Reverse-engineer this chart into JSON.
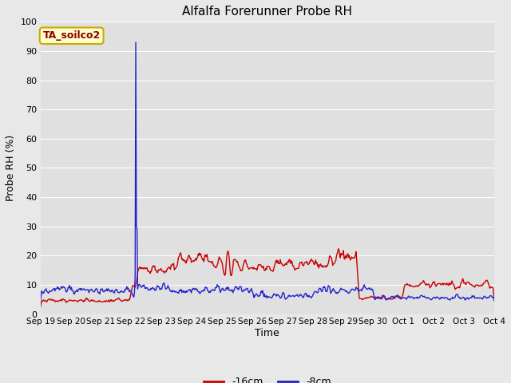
{
  "title": "Alfalfa Forerunner Probe RH",
  "ylabel": "Probe RH (%)",
  "xlabel": "Time",
  "ylim": [
    0,
    100
  ],
  "bg_color": "#e8e8e8",
  "plot_bg_color": "#e0e0e0",
  "grid_color": "#ffffff",
  "annotation_text": "TA_soilco2",
  "annotation_bg": "#ffffcc",
  "annotation_border": "#ccaa00",
  "line1_color": "#cc0000",
  "line2_color": "#2222cc",
  "line1_label": "-16cm",
  "line2_label": "-8cm",
  "xtick_labels": [
    "Sep 19",
    "Sep 20",
    "Sep 21",
    "Sep 22",
    "Sep 23",
    "Sep 24",
    "Sep 25",
    "Sep 26",
    "Sep 27",
    "Sep 28",
    "Sep 29",
    "Sep 30",
    "Oct 1",
    "Oct 2",
    "Oct 3",
    "Oct 4"
  ],
  "num_points": 720,
  "figwidth": 6.4,
  "figheight": 4.8,
  "dpi": 100
}
